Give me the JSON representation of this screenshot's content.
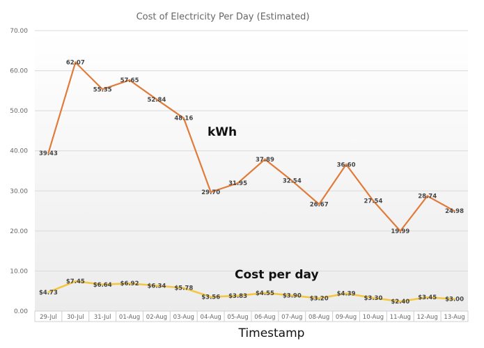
{
  "chart_data": {
    "type": "line",
    "title": "Cost of Electricity Per Day (Estimated)",
    "xlabel": "Timestamp",
    "ylabel": "",
    "ylim": [
      0,
      70
    ],
    "yticks": [
      "0.00",
      "10.00",
      "20.00",
      "30.00",
      "40.00",
      "50.00",
      "60.00",
      "70.00"
    ],
    "grid": true,
    "categories": [
      "29-Jul",
      "30-Jul",
      "31-Jul",
      "01-Aug",
      "02-Aug",
      "03-Aug",
      "04-Aug",
      "05-Aug",
      "06-Aug",
      "07-Aug",
      "08-Aug",
      "09-Aug",
      "10-Aug",
      "11-Aug",
      "12-Aug",
      "13-Aug"
    ],
    "series": [
      {
        "name": "kWh",
        "color": "#E07B39",
        "values": [
          39.43,
          62.07,
          55.35,
          57.65,
          52.84,
          48.16,
          29.7,
          31.95,
          37.89,
          32.54,
          26.67,
          36.6,
          27.54,
          19.99,
          28.74,
          24.98
        ],
        "labels": [
          "39.43",
          "62.07",
          "55.35",
          "57.65",
          "52.84",
          "48.16",
          "29.70",
          "31.95",
          "37.89",
          "32.54",
          "26.67",
          "36.60",
          "27.54",
          "19.99",
          "28.74",
          "24.98"
        ]
      },
      {
        "name": "Cost per day",
        "color": "#F2C744",
        "values": [
          4.73,
          7.45,
          6.64,
          6.92,
          6.34,
          5.78,
          3.56,
          3.83,
          4.55,
          3.9,
          3.2,
          4.39,
          3.3,
          2.4,
          3.45,
          3.0
        ],
        "labels": [
          "$4.73",
          "$7.45",
          "$6.64",
          "$6.92",
          "$6.34",
          "$5.78",
          "$3.56",
          "$3.83",
          "$4.55",
          "$3.90",
          "$3.20",
          "$4.39",
          "$3.30",
          "$2.40",
          "$3.45",
          "$3.00"
        ]
      }
    ]
  }
}
